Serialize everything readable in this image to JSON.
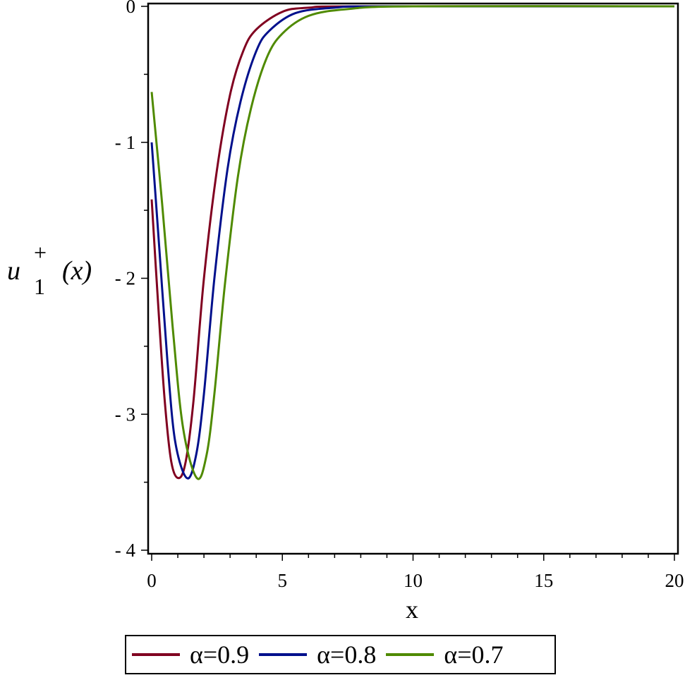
{
  "chart_data": {
    "type": "line",
    "title": "",
    "xlabel": "x",
    "ylabel": "u_1^+ (x)",
    "xlim": [
      0,
      20
    ],
    "ylim": [
      -4,
      0
    ],
    "x_ticks": [
      0,
      5,
      10,
      15,
      20
    ],
    "y_ticks": [
      0,
      -1,
      -2,
      -3,
      -4
    ],
    "x_tick_labels": [
      "0",
      "5",
      "10",
      "15",
      "20"
    ],
    "y_tick_labels": [
      "0",
      "-1",
      "-2",
      "-3",
      "-4"
    ],
    "grid": false,
    "legend_position": "bottom",
    "series": [
      {
        "name": "α=0.9",
        "color": "#800020",
        "points": [
          [
            0,
            -1.42
          ],
          [
            0.25,
            -2.2
          ],
          [
            0.5,
            -2.9
          ],
          [
            0.75,
            -3.35
          ],
          [
            1.03,
            -3.47
          ],
          [
            1.3,
            -3.35
          ],
          [
            1.6,
            -2.9
          ],
          [
            2.0,
            -2.0
          ],
          [
            2.5,
            -1.2
          ],
          [
            3.0,
            -0.65
          ],
          [
            3.5,
            -0.33
          ],
          [
            4.0,
            -0.17
          ],
          [
            5.0,
            -0.04
          ],
          [
            6.0,
            -0.01
          ],
          [
            8.0,
            0
          ],
          [
            20,
            0
          ]
        ]
      },
      {
        "name": "α=0.8",
        "color": "#00108c",
        "points": [
          [
            0,
            -1.0
          ],
          [
            0.3,
            -1.8
          ],
          [
            0.6,
            -2.6
          ],
          [
            0.9,
            -3.2
          ],
          [
            1.35,
            -3.47
          ],
          [
            1.7,
            -3.3
          ],
          [
            2.0,
            -2.85
          ],
          [
            2.4,
            -2.0
          ],
          [
            2.9,
            -1.2
          ],
          [
            3.4,
            -0.7
          ],
          [
            4.0,
            -0.33
          ],
          [
            4.5,
            -0.18
          ],
          [
            5.5,
            -0.05
          ],
          [
            7.0,
            -0.01
          ],
          [
            9.0,
            0
          ],
          [
            20,
            0
          ]
        ]
      },
      {
        "name": "α=0.7",
        "color": "#4f8a00",
        "points": [
          [
            0,
            -0.63
          ],
          [
            0.4,
            -1.45
          ],
          [
            0.8,
            -2.35
          ],
          [
            1.2,
            -3.1
          ],
          [
            1.73,
            -3.47
          ],
          [
            2.1,
            -3.3
          ],
          [
            2.4,
            -2.85
          ],
          [
            2.8,
            -2.05
          ],
          [
            3.3,
            -1.25
          ],
          [
            3.8,
            -0.75
          ],
          [
            4.4,
            -0.38
          ],
          [
            5.0,
            -0.2
          ],
          [
            6.0,
            -0.07
          ],
          [
            7.5,
            -0.02
          ],
          [
            10.0,
            0
          ],
          [
            20,
            0
          ]
        ]
      }
    ]
  },
  "axis": {
    "x_title": "x",
    "y_title_base": "u",
    "y_title_sub": "1",
    "y_title_sup": "+",
    "y_title_arg": "(x)"
  },
  "legend": {
    "items": [
      {
        "label": "α=0.9",
        "color": "#800020"
      },
      {
        "label": "α=0.8",
        "color": "#00108c"
      },
      {
        "label": "α=0.7",
        "color": "#4f8a00"
      }
    ]
  }
}
